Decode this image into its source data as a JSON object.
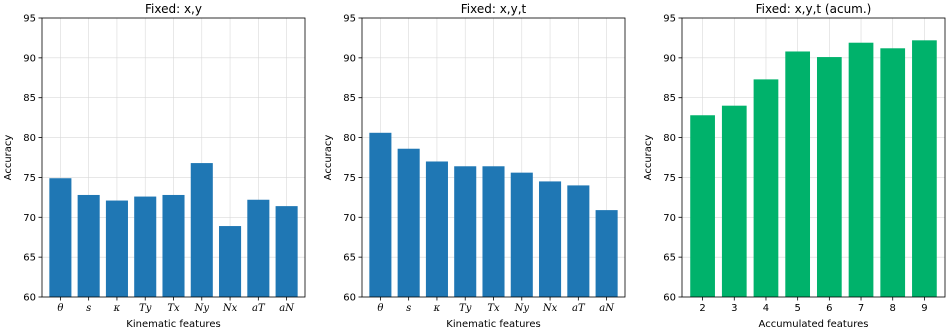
{
  "chart_data": [
    {
      "type": "bar",
      "title": "Fixed: x,y",
      "xlabel": "Kinematic features",
      "ylabel": "Accuracy",
      "ylim": [
        60,
        95
      ],
      "yticks": [
        60,
        65,
        70,
        75,
        80,
        85,
        90,
        95
      ],
      "grid": true,
      "color": "#1f77b4",
      "categories": [
        "θ",
        "s",
        "κ",
        "Ty",
        "Tx",
        "Ny",
        "Nx",
        "aT",
        "aN"
      ],
      "values": [
        74.9,
        72.8,
        72.1,
        72.6,
        72.8,
        76.8,
        68.9,
        72.2,
        71.4
      ]
    },
    {
      "type": "bar",
      "title": "Fixed: x,y,t",
      "xlabel": "Kinematic features",
      "ylabel": "Accuracy",
      "ylim": [
        60,
        95
      ],
      "yticks": [
        60,
        65,
        70,
        75,
        80,
        85,
        90,
        95
      ],
      "grid": true,
      "color": "#1f77b4",
      "categories": [
        "θ",
        "s",
        "κ",
        "Ty",
        "Tx",
        "Ny",
        "Nx",
        "aT",
        "aN"
      ],
      "values": [
        80.6,
        78.6,
        77.0,
        76.4,
        76.4,
        75.6,
        74.5,
        74.0,
        70.9
      ]
    },
    {
      "type": "bar",
      "title": "Fixed: x,y,t (acum.)",
      "xlabel": "Accumulated features",
      "ylabel": "Accuracy",
      "ylim": [
        60,
        95
      ],
      "yticks": [
        60,
        65,
        70,
        75,
        80,
        85,
        90,
        95
      ],
      "grid": true,
      "color": "#00b26b",
      "categories": [
        "2",
        "3",
        "4",
        "5",
        "6",
        "7",
        "8",
        "9"
      ],
      "values": [
        82.8,
        84.0,
        87.3,
        90.8,
        90.1,
        91.9,
        91.2,
        92.2
      ]
    }
  ]
}
